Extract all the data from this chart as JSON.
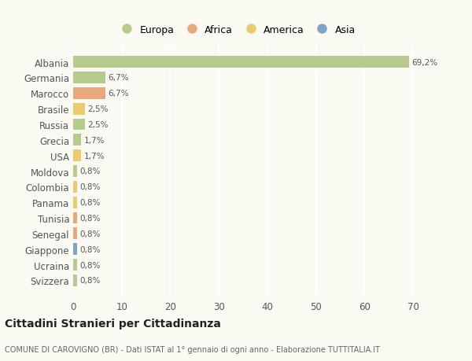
{
  "categories": [
    "Albania",
    "Germania",
    "Marocco",
    "Brasile",
    "Russia",
    "Grecia",
    "USA",
    "Moldova",
    "Colombia",
    "Panama",
    "Tunisia",
    "Senegal",
    "Giappone",
    "Ucraina",
    "Svizzera"
  ],
  "values": [
    69.2,
    6.7,
    6.7,
    2.5,
    2.5,
    1.7,
    1.7,
    0.8,
    0.8,
    0.8,
    0.8,
    0.8,
    0.8,
    0.8,
    0.8
  ],
  "labels": [
    "69,2%",
    "6,7%",
    "6,7%",
    "2,5%",
    "2,5%",
    "1,7%",
    "1,7%",
    "0,8%",
    "0,8%",
    "0,8%",
    "0,8%",
    "0,8%",
    "0,8%",
    "0,8%",
    "0,8%"
  ],
  "bar_colors": [
    "#b5cc8e",
    "#b5cc8e",
    "#e8a87c",
    "#f0c96e",
    "#b5cc8e",
    "#b5cc8e",
    "#f0c96e",
    "#b5cc8e",
    "#f0c96e",
    "#f0c96e",
    "#e8a87c",
    "#e8a87c",
    "#7ea6c4",
    "#b5cc8e",
    "#b5cc8e"
  ],
  "legend_labels": [
    "Europa",
    "Africa",
    "America",
    "Asia"
  ],
  "legend_colors": [
    "#b5cc8e",
    "#e8a87c",
    "#f0c96e",
    "#7ea6c4"
  ],
  "title": "Cittadini Stranieri per Cittadinanza",
  "subtitle": "COMUNE DI CAROVIGNO (BR) - Dati ISTAT al 1° gennaio di ogni anno - Elaborazione TUTTITALIA.IT",
  "xlim": [
    0,
    70
  ],
  "xticks": [
    0,
    10,
    20,
    30,
    40,
    50,
    60,
    70
  ],
  "background_color": "#fafaf2",
  "grid_color": "#ffffff",
  "bar_height": 0.75
}
